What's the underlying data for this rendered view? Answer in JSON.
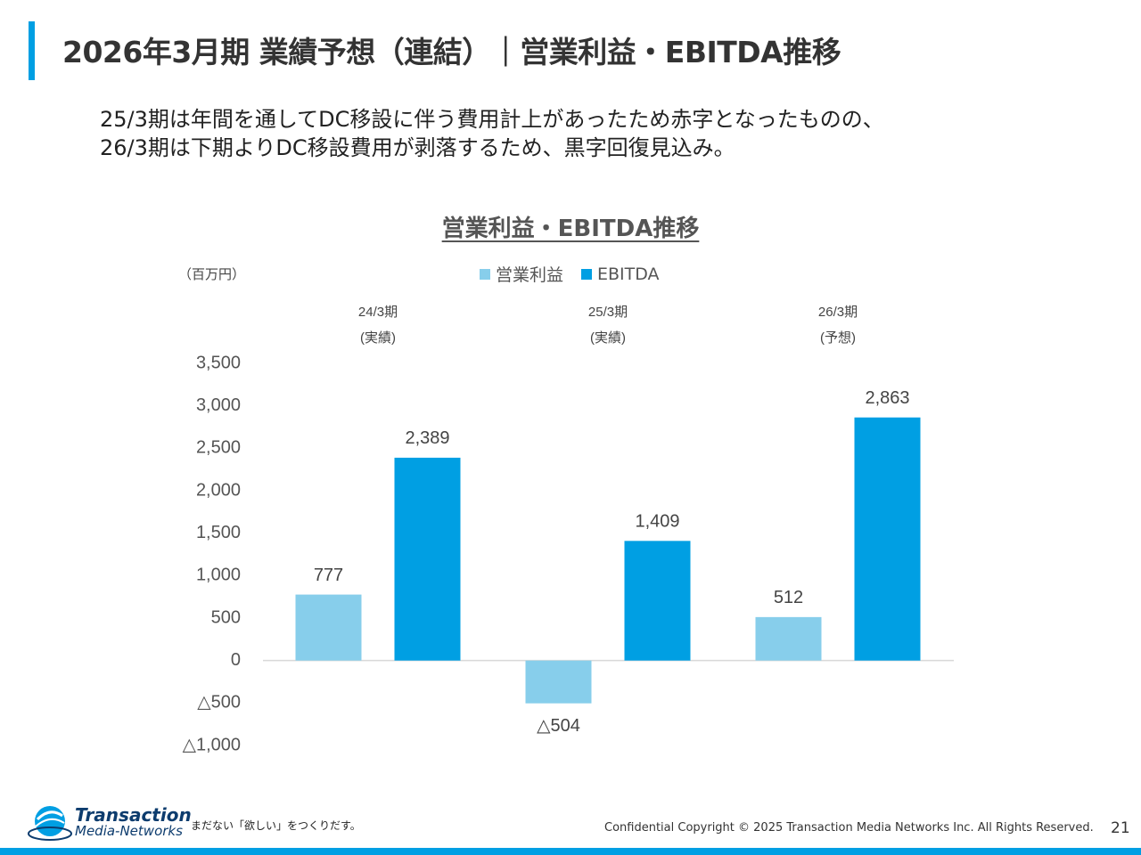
{
  "header": {
    "title": "2026年3月期 業績予想（連結）｜営業利益・EBITDA推移"
  },
  "intro": {
    "line1": "25/3期は年間を通してDC移設に伴う費用計上があったため赤字となったものの、",
    "line2": "26/3期は下期よりDC移設費用が剥落するため、黒字回復見込み。"
  },
  "chart_data": {
    "type": "bar",
    "title": "営業利益・EBITDA推移",
    "unit_label": "（百万円）",
    "categories": [
      "24/3期",
      "25/3期",
      "26/3期"
    ],
    "category_sublabels": [
      "(実績)",
      "(実績)",
      "(予想)"
    ],
    "series": [
      {
        "name": "営業利益",
        "color": "#87ceeb",
        "values": [
          777,
          -504,
          512
        ],
        "labels": [
          "777",
          "△504",
          "512"
        ]
      },
      {
        "name": "EBITDA",
        "color": "#009fe3",
        "values": [
          2389,
          1409,
          2863
        ],
        "labels": [
          "2,389",
          "1,409",
          "2,863"
        ]
      }
    ],
    "ylim": [
      -1000,
      3500
    ],
    "yticks": [
      3500,
      3000,
      2500,
      2000,
      1500,
      1000,
      500,
      0,
      -500,
      -1000
    ],
    "ytick_labels": [
      "3,500",
      "3,000",
      "2,500",
      "2,000",
      "1,500",
      "1,000",
      "500",
      "0",
      "△500",
      "△1,000"
    ],
    "legend_position": "top-center",
    "grid": false
  },
  "footer": {
    "brand_line1": "Transaction",
    "brand_line2": "Media-Networks",
    "tagline": "まだない「欲しい」をつくりだす。",
    "copyright": "Confidential  Copyright © 2025 Transaction Media Networks Inc. All Rights Reserved.",
    "page_number": "21"
  },
  "colors": {
    "accent": "#009fe3",
    "brand_dark": "#0d3c6e"
  }
}
